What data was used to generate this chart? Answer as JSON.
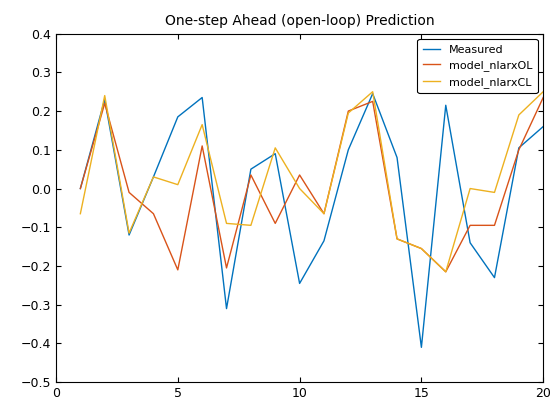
{
  "title": "One-step Ahead (open-loop) Prediction",
  "xlim": [
    0,
    20
  ],
  "ylim": [
    -0.5,
    0.4
  ],
  "yticks": [
    -0.5,
    -0.4,
    -0.3,
    -0.2,
    -0.1,
    0.0,
    0.1,
    0.2,
    0.3,
    0.4
  ],
  "xticks": [
    0,
    5,
    10,
    15,
    20
  ],
  "measured_x": [
    1,
    2,
    3,
    4,
    5,
    6,
    7,
    8,
    9,
    10,
    11,
    12,
    13,
    14,
    15,
    16,
    17,
    18,
    19,
    20
  ],
  "measured_y": [
    0.0,
    0.23,
    -0.12,
    0.03,
    0.185,
    0.235,
    -0.31,
    0.05,
    0.09,
    -0.245,
    -0.135,
    0.1,
    0.245,
    0.08,
    -0.41,
    0.215,
    -0.14,
    -0.23,
    0.105,
    0.16
  ],
  "nlarxOL_x": [
    1,
    2,
    3,
    4,
    5,
    6,
    7,
    8,
    9,
    10,
    11,
    12,
    13,
    14,
    15,
    16,
    17,
    18,
    19,
    20
  ],
  "nlarxOL_y": [
    0.0,
    0.22,
    -0.01,
    -0.065,
    -0.21,
    0.11,
    -0.205,
    0.035,
    -0.09,
    0.035,
    -0.065,
    0.2,
    0.225,
    -0.13,
    -0.155,
    -0.215,
    -0.095,
    -0.095,
    0.1,
    0.235
  ],
  "nlarxCL_x": [
    1,
    2,
    3,
    4,
    5,
    6,
    7,
    8,
    9,
    10,
    11,
    12,
    13,
    14,
    15,
    16,
    17,
    18,
    19,
    20
  ],
  "nlarxCL_y": [
    -0.065,
    0.24,
    -0.115,
    0.03,
    0.01,
    0.165,
    -0.09,
    -0.095,
    0.105,
    0.0,
    -0.065,
    0.195,
    0.25,
    -0.13,
    -0.155,
    -0.215,
    0.0,
    -0.01,
    0.19,
    0.25
  ],
  "measured_color": "#0072BD",
  "nlarxOL_color": "#D95319",
  "nlarxCL_color": "#EDB120",
  "legend_labels": [
    "Measured",
    "model_nlarxOL",
    "model_nlarxCL"
  ],
  "linewidth": 1.0,
  "background_color": "#ffffff"
}
